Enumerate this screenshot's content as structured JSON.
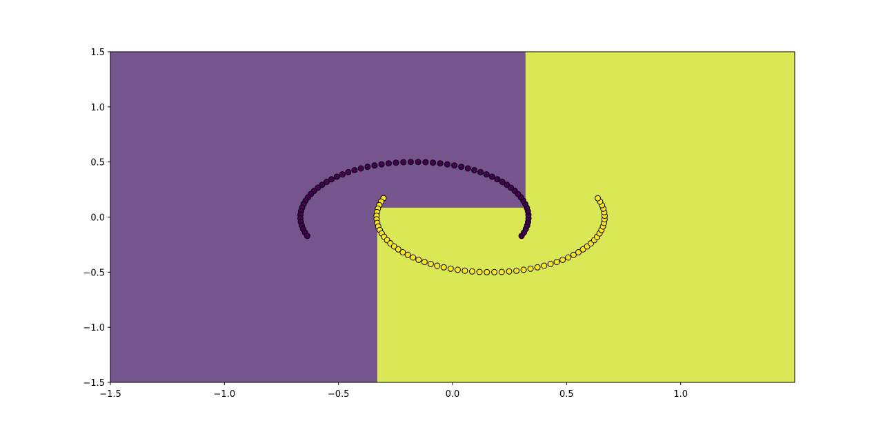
{
  "chart_data": {
    "type": "scatter",
    "title": "",
    "xlabel": "",
    "ylabel": "",
    "xlim": [
      -1.5,
      1.5
    ],
    "ylim": [
      -1.5,
      1.5
    ],
    "grid": false,
    "xticks": [
      -1.5,
      -1.0,
      -0.5,
      0.0,
      0.5,
      1.0
    ],
    "xtick_labels": [
      "−1.5",
      "−1.0",
      "−0.5",
      "0.0",
      "0.5",
      "1.0"
    ],
    "yticks": [
      -1.5,
      -1.0,
      -0.5,
      0.0,
      0.5,
      1.0,
      1.5
    ],
    "ytick_labels": [
      "−1.5",
      "−1.0",
      "−0.5",
      "0.0",
      "0.5",
      "1.0",
      "1.5"
    ],
    "decision_regions": {
      "class_0_color": "#76558f",
      "class_1_color": "#dbe855",
      "class_1_region": [
        [
          -0.33,
          -1.5
        ],
        [
          -0.33,
          0.085
        ],
        [
          0.32,
          0.085
        ],
        [
          0.32,
          1.5
        ],
        [
          1.5,
          1.5
        ],
        [
          1.5,
          -1.5
        ]
      ]
    },
    "series": [
      {
        "color": "#440154",
        "center": [
          -0.167,
          0.0
        ],
        "radius": 0.5,
        "angle_start_deg": -20,
        "angle_end_deg": 200,
        "n_points": 60
      },
      {
        "color": "#fde725",
        "center": [
          0.167,
          0.0
        ],
        "radius": 0.5,
        "angle_start_deg": 160,
        "angle_end_deg": 380,
        "n_points": 60
      }
    ],
    "edge_color": "#000000"
  }
}
